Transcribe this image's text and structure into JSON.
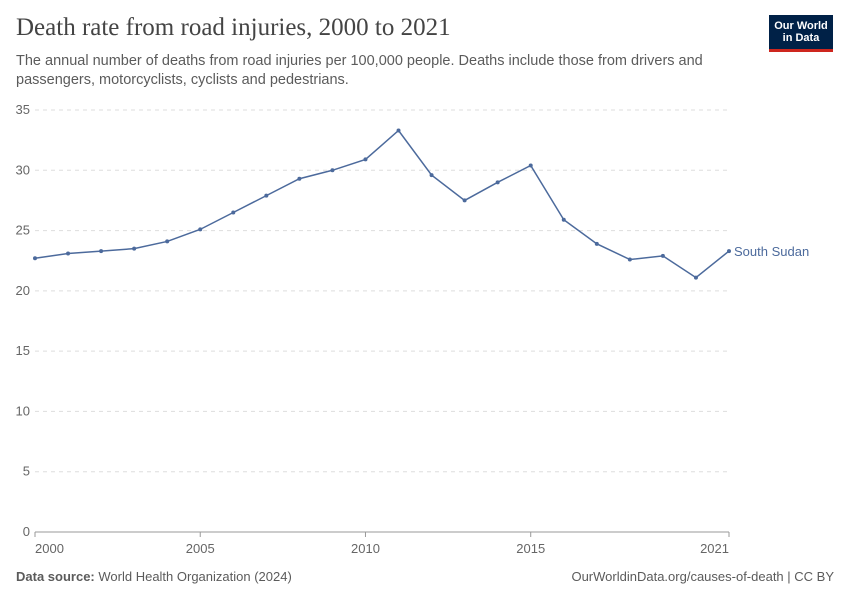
{
  "chart_data": {
    "type": "line",
    "title": "Death rate from road injuries, 2000 to 2021",
    "subtitle": "The annual number of deaths from road injuries per 100,000 people. Deaths include those from drivers and passengers, motorcyclists, cyclists and pedestrians.",
    "x": [
      2000,
      2001,
      2002,
      2003,
      2004,
      2005,
      2006,
      2007,
      2008,
      2009,
      2010,
      2011,
      2012,
      2013,
      2014,
      2015,
      2016,
      2017,
      2018,
      2019,
      2020,
      2021
    ],
    "series": [
      {
        "name": "South Sudan",
        "color": "#4c6a9c",
        "values": [
          22.7,
          23.1,
          23.3,
          23.5,
          24.1,
          25.1,
          26.5,
          27.9,
          29.3,
          30.0,
          30.9,
          33.3,
          29.6,
          27.5,
          29.0,
          30.4,
          25.9,
          23.9,
          22.6,
          22.9,
          21.1,
          23.3
        ]
      }
    ],
    "xlim": [
      2000,
      2021
    ],
    "xticks": [
      2000,
      2005,
      2010,
      2015,
      2021
    ],
    "ylim": [
      0,
      35
    ],
    "yticks": [
      0,
      5,
      10,
      15,
      20,
      25,
      30,
      35
    ],
    "grid": true
  },
  "logo": "Our World in Data",
  "footer": {
    "source_label": "Data source:",
    "source": "World Health Organization (2024)",
    "url": "OurWorldinData.org/causes-of-death | CC BY"
  }
}
